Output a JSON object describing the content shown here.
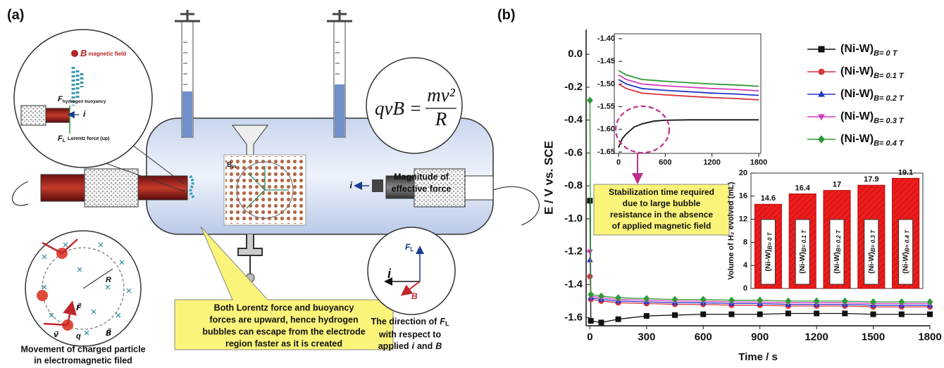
{
  "panel_a": {
    "label": "(a)",
    "zoom_circle": {
      "b_symbol": "B",
      "b_text": "magnetic field",
      "buoyancy_symbol": "F",
      "buoyancy_subscript": "hydrogen buoyancy",
      "current": "i",
      "lorentz_symbol": "F",
      "lorentz_subscript": "L",
      "lorentz_text": "Lorentz force (up)"
    },
    "equation": {
      "lhs": "qvB =",
      "numerator": "mv²",
      "denominator": "R"
    },
    "equation_caption": [
      "Magnitude of",
      "effective force"
    ],
    "lattice": {
      "b_symbol": "B",
      "b_subscript": "in",
      "current": "i"
    },
    "particle_circle": {
      "radius": "R",
      "charge": "q",
      "velocity": "v⃗",
      "field": "B⃗",
      "force": "F⃗"
    },
    "particle_caption": [
      "Movement of charged particle",
      "in electromagnetic filed"
    ],
    "callout": [
      "Both Lorentz force and buoyancy",
      "forces are upward, hence hydrogen",
      "bubbles can escape from the electrode",
      "region faster as it is created"
    ],
    "direction_circle": {
      "current": "i",
      "force_symbol": "F",
      "force_subscript": "L",
      "field": "B"
    },
    "direction_caption": {
      "line1": "The direction of",
      "symbol": "F",
      "subscript": "L",
      "line2": "with respect to",
      "line3": "applied",
      "current": "i",
      "conjunction": "and",
      "field": "B"
    }
  },
  "panel_b": {
    "label": "(b)"
  },
  "chart_data": [
    {
      "type": "line",
      "xlabel": "Time / s",
      "ylabel": "E / V vs. SCE",
      "legend": "upper right",
      "x": [
        0,
        5,
        60,
        150,
        300,
        450,
        600,
        750,
        900,
        1050,
        1200,
        1350,
        1500,
        1650,
        1800
      ],
      "series": [
        {
          "name": "(Ni-W)",
          "name_subscript": "B= 0 T",
          "color": "#111111",
          "marker": "square",
          "values": [
            -0.89,
            -1.62,
            -1.63,
            -1.61,
            -1.59,
            -1.585,
            -1.58,
            -1.58,
            -1.58,
            -1.575,
            -1.575,
            -1.575,
            -1.58,
            -1.58,
            -1.58
          ]
        },
        {
          "name": "(Ni-W)",
          "name_subscript": "B= 0.1 T",
          "color": "#d9343a",
          "marker": "circle",
          "values": [
            -1.35,
            -1.49,
            -1.5,
            -1.51,
            -1.515,
            -1.52,
            -1.52,
            -1.525,
            -1.525,
            -1.53,
            -1.53,
            -1.53,
            -1.535,
            -1.535,
            -1.535
          ]
        },
        {
          "name": "(Ni-W)",
          "name_subscript": "B= 0.2 T",
          "color": "#2637c9",
          "marker": "triangle-up",
          "values": [
            -1.25,
            -1.48,
            -1.49,
            -1.5,
            -1.505,
            -1.51,
            -1.51,
            -1.515,
            -1.515,
            -1.52,
            -1.52,
            -1.52,
            -1.525,
            -1.525,
            -1.525
          ]
        },
        {
          "name": "(Ni-W)",
          "name_subscript": "B= 0.3 T",
          "color": "#d63bbd",
          "marker": "triangle-down",
          "values": [
            -1.2,
            -1.47,
            -1.48,
            -1.49,
            -1.495,
            -1.5,
            -1.5,
            -1.505,
            -1.505,
            -1.51,
            -1.51,
            -1.51,
            -1.515,
            -1.515,
            -1.515
          ]
        },
        {
          "name": "(Ni-W)",
          "name_subscript": "B= 0.4 T",
          "color": "#2e9a35",
          "marker": "diamond",
          "values": [
            -0.28,
            -1.46,
            -1.47,
            -1.48,
            -1.485,
            -1.49,
            -1.49,
            -1.495,
            -1.495,
            -1.5,
            -1.5,
            -1.5,
            -1.505,
            -1.505,
            -1.505
          ]
        }
      ],
      "xlim": [
        -20,
        1800
      ],
      "xticks": [
        0,
        300,
        600,
        900,
        1200,
        1500,
        1800
      ],
      "ylim": [
        -1.65,
        0.15
      ],
      "yticks": [
        {
          "value": 0,
          "label": "0.0"
        },
        -0.2,
        -0.4,
        -0.6,
        -0.8,
        {
          "value": -1,
          "label": "-1.0"
        },
        -1.2,
        -1.4,
        -1.6
      ]
    },
    {
      "type": "line",
      "x": [
        0,
        50,
        100,
        200,
        300,
        450,
        600,
        900,
        1200,
        1500,
        1800
      ],
      "series": [
        {
          "color": "#111111",
          "values": [
            -1.64,
            -1.62,
            -1.61,
            -1.595,
            -1.588,
            -1.582,
            -1.58,
            -1.579,
            -1.579,
            -1.579,
            -1.579
          ]
        },
        {
          "color": "#d9343a",
          "values": [
            -1.5,
            -1.505,
            -1.51,
            -1.515,
            -1.52,
            -1.522,
            -1.524,
            -1.527,
            -1.53,
            -1.532,
            -1.535
          ]
        },
        {
          "color": "#2637c9",
          "values": [
            -1.49,
            -1.495,
            -1.5,
            -1.505,
            -1.51,
            -1.512,
            -1.514,
            -1.517,
            -1.52,
            -1.522,
            -1.525
          ]
        },
        {
          "color": "#d63bbd",
          "values": [
            -1.48,
            -1.485,
            -1.49,
            -1.495,
            -1.5,
            -1.502,
            -1.504,
            -1.507,
            -1.51,
            -1.512,
            -1.515
          ]
        },
        {
          "color": "#2e9a35",
          "values": [
            -1.47,
            -1.475,
            -1.48,
            -1.485,
            -1.49,
            -1.492,
            -1.494,
            -1.497,
            -1.5,
            -1.502,
            -1.505
          ]
        }
      ],
      "xlim": [
        0,
        1800
      ],
      "xticks": [
        0,
        600,
        1200,
        1800
      ],
      "ylim": [
        -1.65,
        -1.4
      ],
      "yticks": [
        {
          "value": -1.4,
          "label": "-1.40"
        },
        -1.45,
        {
          "value": -1.5,
          "label": "-1.50"
        },
        -1.55,
        {
          "value": -1.6,
          "label": "-1.60"
        },
        -1.65
      ],
      "annotation": [
        "Stabilization time required",
        "due to large bubble",
        "resistance in the absence",
        "of applied magnetic field"
      ]
    },
    {
      "type": "bar",
      "ylabel": "Volume of H₂ evolved (mL)",
      "category_prefix": "(Ni-W)",
      "categories": [
        "B= 0 T",
        "B= 0.1 T",
        "B= 0.2 T",
        "B= 0.3 T",
        "B= 0.4 T"
      ],
      "values": [
        14.6,
        16.4,
        17,
        17.9,
        19.1
      ],
      "color": "#ee1c1c",
      "ylim": [
        0,
        20
      ],
      "yticks": [
        0,
        4,
        8,
        12,
        16,
        20
      ]
    }
  ]
}
